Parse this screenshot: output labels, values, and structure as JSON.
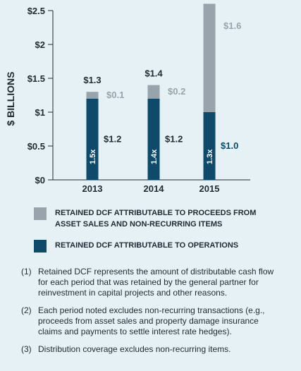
{
  "chart_data": {
    "type": "bar",
    "stacked": true,
    "ylabel": "$ BILLIONS",
    "ylim": [
      0,
      2.5
    ],
    "y_ticks": [
      {
        "value": 0,
        "label": "$0"
      },
      {
        "value": 0.5,
        "label": "$0.5"
      },
      {
        "value": 1,
        "label": "$1"
      },
      {
        "value": 1.5,
        "label": "$1.5"
      },
      {
        "value": 2,
        "label": "$2"
      },
      {
        "value": 2.5,
        "label": "$2.5"
      }
    ],
    "categories": [
      "2013",
      "2014",
      "2015"
    ],
    "series": [
      {
        "name": "RETAINED DCF ATTRIBUTABLE TO OPERATIONS",
        "color": "#0f4a6b",
        "values": [
          1.2,
          1.2,
          1.0
        ],
        "labels": [
          "$1.2",
          "$1.2",
          "$1.0"
        ]
      },
      {
        "name": "RETAINED DCF ATTRIBUTABLE TO PROCEEDS FROM ASSET SALES AND NON-RECURRING ITEMS",
        "color": "#98a3ab",
        "values": [
          0.1,
          0.2,
          1.6
        ],
        "labels": [
          "$0.1",
          "$0.2",
          "$1.6"
        ]
      }
    ],
    "totals": [
      "$1.3",
      "$1.4",
      ""
    ],
    "coverage_labels": [
      "1.5x",
      "1.4x",
      "1.3x"
    ]
  },
  "footnotes": [
    {
      "mark": "(1)",
      "text": "Retained DCF represents the amount of distributable cash flow for each period that was retained by the general partner for reinvestment in capital projects and other reasons."
    },
    {
      "mark": "(2)",
      "text": "Each period noted excludes non-recurring transactions (e.g., proceeds from asset sales and property damage insurance claims and payments to settle interest rate hedges)."
    },
    {
      "mark": "(3)",
      "text": "Distribution coverage excludes non-recurring items."
    }
  ]
}
